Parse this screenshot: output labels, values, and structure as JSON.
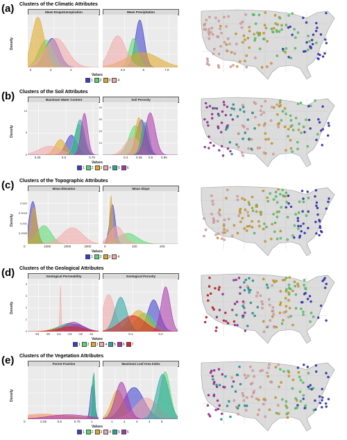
{
  "colors": [
    "#3b3bcc",
    "#55d96a",
    "#e0a820",
    "#f4a6a6",
    "#2aa3a3",
    "#aa33aa",
    "#dd2222"
  ],
  "chart_data": [
    {
      "id": "a",
      "type": "area",
      "label": "(a)",
      "title": "Clusters of the Climatic Attributes",
      "xlabel": "Values",
      "ylabel": "Density",
      "legend": [
        "1",
        "2",
        "3",
        "4"
      ],
      "panels": [
        {
          "name": "Mean Evapotranspiration",
          "xlim": [
            1.7,
            5.2
          ],
          "ylim": [
            0,
            1.0
          ],
          "xticks": [
            2,
            3,
            4
          ],
          "yticks": [],
          "series": [
            [
              2.9,
              0.35,
              0.55
            ],
            [
              2.6,
              0.35,
              0.52
            ],
            [
              2.2,
              0.3,
              0.95
            ],
            [
              3.1,
              0.55,
              0.55
            ]
          ]
        },
        {
          "name": "Mean Precipitation",
          "xlim": [
            0,
            8.5
          ],
          "ylim": [
            0,
            1.0
          ],
          "xticks": [
            2.5,
            5.0,
            7.5
          ],
          "yticks": [],
          "series": [
            [
              4.2,
              0.5,
              0.9
            ],
            [
              3.5,
              0.5,
              0.55
            ],
            [
              4.5,
              1.9,
              0.28
            ],
            [
              1.7,
              0.9,
              0.6
            ]
          ]
        }
      ]
    },
    {
      "id": "b",
      "type": "area",
      "label": "(b)",
      "title": "Clusters of the Soil Attributes",
      "xlabel": "Values",
      "ylabel": "Density",
      "legend": [
        "1",
        "2",
        "3",
        "4",
        "5",
        "6"
      ],
      "panels": [
        {
          "name": "Maximum Water Content",
          "xlim": [
            0.15,
            0.8
          ],
          "ylim": [
            0,
            12
          ],
          "xticks": [
            0.25,
            0.5,
            0.75
          ],
          "yticks": [
            0,
            5,
            10
          ],
          "series": [
            [
              0.55,
              0.05,
              4.5
            ],
            [
              0.62,
              0.04,
              7
            ],
            [
              0.45,
              0.05,
              3.5
            ],
            [
              0.35,
              0.1,
              2
            ],
            [
              0.63,
              0.04,
              8
            ],
            [
              0.67,
              0.03,
              9.5
            ]
          ]
        },
        {
          "name": "Soil Porosity",
          "xlim": [
            0.3,
            0.6
          ],
          "ylim": [
            0,
            45
          ],
          "xticks": [
            0.4,
            0.45,
            0.5,
            0.55
          ],
          "yticks": [
            10,
            20,
            30,
            40
          ],
          "series": [
            [
              0.455,
              0.02,
              30
            ],
            [
              0.43,
              0.025,
              25
            ],
            [
              0.445,
              0.015,
              32
            ],
            [
              0.42,
              0.03,
              15
            ],
            [
              0.47,
              0.015,
              28
            ],
            [
              0.49,
              0.02,
              36
            ]
          ]
        }
      ]
    },
    {
      "id": "c",
      "type": "area",
      "label": "(c)",
      "title": "Clusters of the Topographic Attributes",
      "xlabel": "Values",
      "ylabel": "Density",
      "legend": [
        "1",
        "2",
        "3",
        "4"
      ],
      "panels": [
        {
          "name": "Mean Elevation",
          "xlim": [
            0,
            3500
          ],
          "ylim": [
            0,
            0.0026
          ],
          "xticks": [
            0,
            1000,
            2000,
            3000
          ],
          "yticks": [
            0.0005,
            0.001,
            0.0015,
            0.002
          ],
          "series": [
            [
              250,
              180,
              0.0021
            ],
            [
              800,
              350,
              0.0009
            ],
            [
              300,
              150,
              0.0018
            ],
            [
              2200,
              500,
              0.0008
            ]
          ]
        },
        {
          "name": "Mean Slope",
          "xlim": [
            -20,
            250
          ],
          "ylim": [
            0,
            0.06
          ],
          "xticks": [
            0,
            100,
            200
          ],
          "yticks": [],
          "series": [
            [
              15,
              10,
              0.045
            ],
            [
              70,
              35,
              0.012
            ],
            [
              10,
              5,
              0.055
            ],
            [
              30,
              25,
              0.02
            ]
          ]
        }
      ]
    },
    {
      "id": "d",
      "type": "area",
      "label": "(d)",
      "title": "Clusters of the Geological Attributes",
      "xlabel": "Values",
      "ylabel": "Density",
      "legend": [
        "1",
        "2",
        "3",
        "4",
        "5",
        "6",
        "7"
      ],
      "panels": [
        {
          "name": "Geological Permeability",
          "xlim": [
            -17,
            -10.5
          ],
          "ylim": [
            0,
            4.5
          ],
          "xticks": [
            -16,
            -15,
            -14,
            -13,
            -12,
            -11
          ],
          "yticks": [
            0,
            1,
            2,
            3,
            4
          ],
          "series": [
            [
              -12.5,
              0.8,
              0.6
            ],
            [
              -14,
              0.7,
              0.4
            ],
            [
              -13.5,
              1,
              0.5
            ],
            [
              -14,
              0.05,
              4
            ],
            [
              -13.2,
              0.9,
              0.7
            ],
            [
              -12.8,
              0.8,
              0.8
            ],
            [
              -13,
              1.2,
              0.4
            ]
          ]
        },
        {
          "name": "Geological Porosity",
          "xlim": [
            0,
            0.25
          ],
          "ylim": [
            0,
            20
          ],
          "xticks": [
            0.1,
            0.2
          ],
          "yticks": [],
          "series": [
            [
              0.17,
              0.02,
              12
            ],
            [
              0.14,
              0.03,
              7
            ],
            [
              0.12,
              0.03,
              8
            ],
            [
              0.02,
              0.02,
              14
            ],
            [
              0.06,
              0.02,
              13
            ],
            [
              0.21,
              0.015,
              17
            ],
            [
              0.1,
              0.04,
              6
            ]
          ]
        }
      ]
    },
    {
      "id": "e",
      "type": "area",
      "label": "(e)",
      "title": "Clusters of the Vegetation Attributes",
      "xlabel": "Values",
      "ylabel": "Density",
      "legend": [
        "1",
        "2",
        "3",
        "4",
        "5",
        "6"
      ],
      "panels": [
        {
          "name": "Forest Fraction",
          "xlim": [
            0,
            1.05
          ],
          "ylim": [
            0,
            12
          ],
          "xticks": [
            0.0,
            0.25,
            0.5,
            0.75,
            1.0
          ],
          "yticks": [],
          "series": [
            [
              0.96,
              0.03,
              8
            ],
            [
              0.97,
              0.02,
              10
            ],
            [
              0.3,
              0.4,
              1
            ],
            [
              0.2,
              0.3,
              1.2
            ],
            [
              0.98,
              0.015,
              11
            ],
            [
              0.6,
              0.3,
              1
            ]
          ]
        },
        {
          "name": "Maximum Leaf Area Index",
          "xlim": [
            0,
            6
          ],
          "ylim": [
            0,
            1.0
          ],
          "xticks": [
            1,
            2,
            3,
            4,
            5
          ],
          "yticks": [],
          "series": [
            [
              2.5,
              0.8,
              0.6
            ],
            [
              5,
              0.4,
              0.9
            ],
            [
              1.2,
              0.5,
              0.55
            ],
            [
              3.5,
              0.9,
              0.4
            ],
            [
              4.8,
              0.5,
              0.85
            ],
            [
              1.5,
              0.5,
              0.7
            ]
          ]
        }
      ]
    }
  ]
}
